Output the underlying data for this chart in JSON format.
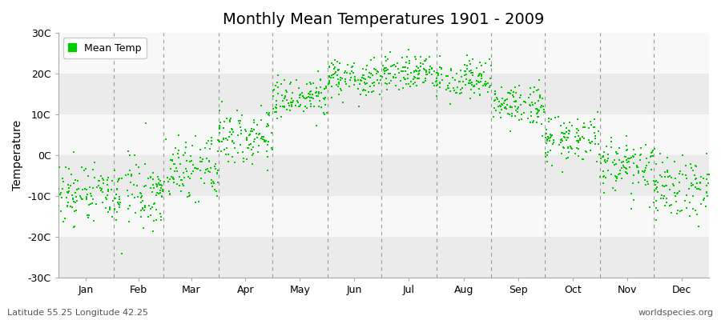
{
  "title": "Monthly Mean Temperatures 1901 - 2009",
  "ylabel": "Temperature",
  "ylim": [
    -30,
    30
  ],
  "yticks": [
    -30,
    -20,
    -10,
    0,
    10,
    20,
    30
  ],
  "ytick_labels": [
    "-30C",
    "-20C",
    "-10C",
    "0C",
    "10C",
    "20C",
    "30C"
  ],
  "months": [
    "Jan",
    "Feb",
    "Mar",
    "Apr",
    "May",
    "Jun",
    "Jul",
    "Aug",
    "Sep",
    "Oct",
    "Nov",
    "Dec"
  ],
  "month_days": [
    31,
    28,
    31,
    30,
    31,
    30,
    31,
    31,
    30,
    31,
    30,
    31
  ],
  "dot_color": "#00CC00",
  "dot_size": 3,
  "background_color": "#ffffff",
  "band_colors": [
    "#ebebeb",
    "#f8f8f8"
  ],
  "legend_label": "Mean Temp",
  "bottom_left_text": "Latitude 55.25 Longitude 42.25",
  "bottom_right_text": "worldspecies.org",
  "n_years": 109,
  "monthly_means": [
    -9.5,
    -9.5,
    -3.5,
    5.0,
    13.5,
    18.5,
    20.5,
    18.5,
    12.0,
    4.0,
    -2.5,
    -7.5
  ],
  "monthly_stds": [
    4.2,
    4.5,
    3.8,
    3.2,
    2.8,
    2.3,
    2.2,
    2.3,
    2.5,
    3.0,
    3.5,
    3.8
  ],
  "title_fontsize": 14,
  "axis_fontsize": 10,
  "tick_fontsize": 9,
  "dashed_line_color": "#999999",
  "spine_color": "#aaaaaa"
}
